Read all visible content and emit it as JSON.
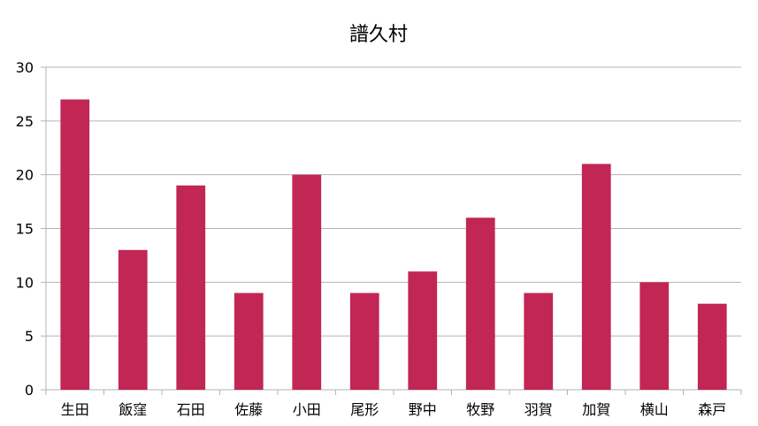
{
  "chart_data": {
    "type": "bar",
    "title": "譜久村",
    "categories": [
      "生田",
      "飯窪",
      "石田",
      "佐藤",
      "小田",
      "尾形",
      "野中",
      "牧野",
      "羽賀",
      "加賀",
      "横山",
      "森戸"
    ],
    "values": [
      27,
      13,
      19,
      9,
      20,
      9,
      11,
      16,
      9,
      21,
      10,
      8
    ],
    "ylim": [
      0,
      30
    ],
    "yticks": [
      0,
      5,
      10,
      15,
      20,
      25,
      30
    ],
    "xlabel": "",
    "ylabel": "",
    "grid": true,
    "legend": "none",
    "colors": {
      "bar": "#c12654",
      "grid": "#b3b3b3",
      "axis": "#b3b3b3",
      "text": "#000000"
    }
  }
}
